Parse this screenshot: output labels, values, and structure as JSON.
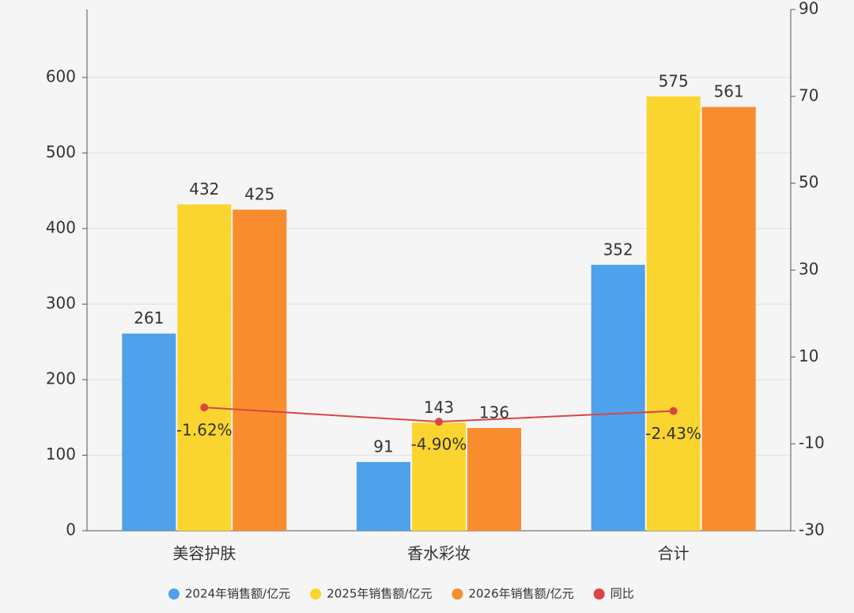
{
  "chart_data": {
    "type": "bar",
    "categories": [
      "美容护肤",
      "香水彩妆",
      "合计"
    ],
    "series": [
      {
        "name": "2024年销售额/亿元",
        "color": "#4ea1ea",
        "values": [
          261,
          91,
          352
        ]
      },
      {
        "name": "2025年销售额/亿元",
        "color": "#fbd52f",
        "values": [
          432,
          143,
          575
        ]
      },
      {
        "name": "2026年销售额/亿元",
        "color": "#f98c2e",
        "values": [
          425,
          136,
          561
        ]
      },
      {
        "name": "同比",
        "type": "line",
        "axis": "y2",
        "color": "#d94545",
        "values": [
          -1.62,
          -4.9,
          -2.43
        ],
        "value_labels": [
          "-1.62%",
          "-4.90%",
          "-2.43%"
        ]
      }
    ],
    "ylim": [
      0,
      690
    ],
    "yticks": [
      0,
      100,
      200,
      300,
      400,
      500,
      600
    ],
    "y2lim": [
      -30,
      90
    ],
    "y2ticks": [
      -30,
      -10,
      10,
      30,
      50,
      70,
      90
    ],
    "grid": true,
    "legend": "bottom"
  }
}
